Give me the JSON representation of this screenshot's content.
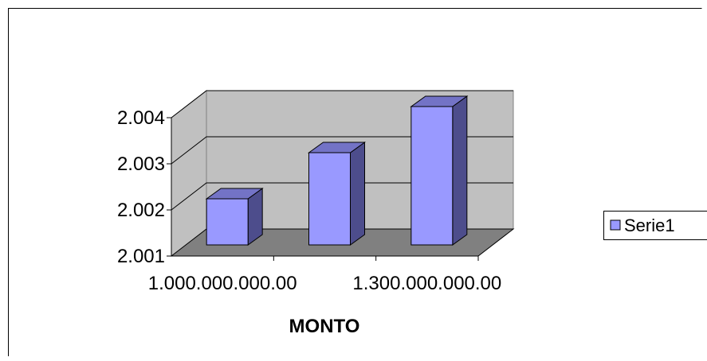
{
  "chart_data": {
    "type": "bar",
    "style": "3d-column",
    "categories": [
      "1.000.000.000.00",
      "",
      "1.300.000.000.00"
    ],
    "series": [
      {
        "name": "Serie1",
        "values": [
          2.002,
          2.003,
          2.004
        ]
      }
    ],
    "yticks": [
      "2.001",
      "2.002",
      "2.003",
      "2.004"
    ],
    "ylim": [
      2.001,
      2.004
    ],
    "xlabel": "MONTO",
    "ylabel": "",
    "title": "",
    "grid": true,
    "legend_position": "right",
    "colors": {
      "bar_front": "#9999ff",
      "bar_side": "#4d4d8c",
      "bar_top": "#7373c6",
      "back_wall": "#c0c0c0",
      "side_wall": "#c0c0c0",
      "floor": "#808080"
    }
  }
}
